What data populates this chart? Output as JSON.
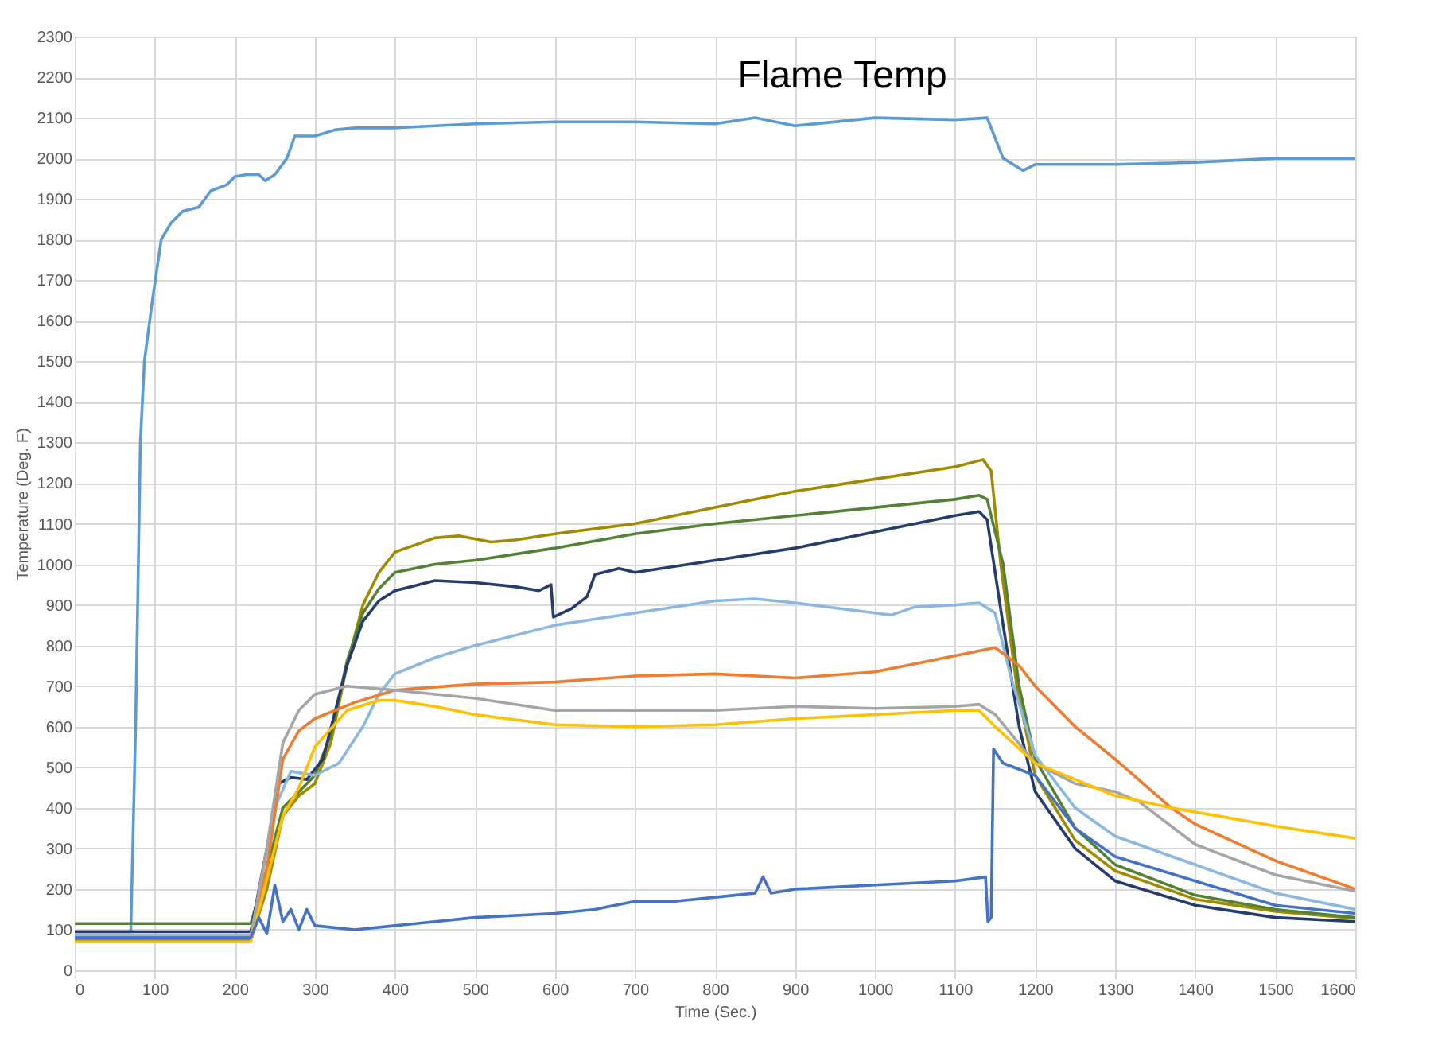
{
  "chart_data": {
    "type": "line",
    "title": "Flame Temp",
    "xlabel": "Time (Sec.)",
    "ylabel": "Temperature (Deg. F)",
    "xlim": [
      0,
      1600
    ],
    "xticks": [
      0,
      100,
      200,
      300,
      400,
      500,
      600,
      700,
      800,
      900,
      1000,
      1100,
      1200,
      1300,
      1400,
      1500,
      1600
    ],
    "ylim": [
      0,
      2300
    ],
    "yticks": [
      0,
      100,
      200,
      300,
      400,
      500,
      600,
      700,
      800,
      900,
      1000,
      1100,
      1200,
      1300,
      1400,
      1500,
      1600,
      1700,
      1800,
      1900,
      2000,
      2100,
      2200,
      2300
    ],
    "grid": true,
    "legend": false,
    "marker": "none",
    "line_style": "solid",
    "series": [
      {
        "color": "#5b9bd5",
        "x": [
          0,
          70,
          76,
          82,
          87,
          97,
          108,
          120,
          135,
          155,
          170,
          190,
          200,
          215,
          230,
          238,
          250,
          265,
          275,
          300,
          325,
          350,
          400,
          500,
          600,
          700,
          800,
          850,
          900,
          1000,
          1100,
          1140,
          1150,
          1160,
          1185,
          1200,
          1300,
          1400,
          1500,
          1600
        ],
        "values": [
          95,
          95,
          600,
          1300,
          1500,
          1650,
          1800,
          1840,
          1870,
          1880,
          1920,
          1935,
          1955,
          1960,
          1960,
          1945,
          1960,
          2000,
          2055,
          2055,
          2070,
          2075,
          2075,
          2085,
          2090,
          2090,
          2085,
          2100,
          2080,
          2100,
          2095,
          2100,
          2050,
          2000,
          1970,
          1985,
          1985,
          1990,
          2000,
          2000
        ]
      },
      {
        "color": "#a08b00",
        "x": [
          0,
          220,
          240,
          260,
          280,
          300,
          320,
          340,
          360,
          380,
          400,
          450,
          480,
          520,
          550,
          600,
          700,
          800,
          900,
          1000,
          1100,
          1135,
          1145,
          1157,
          1177,
          1200,
          1250,
          1300,
          1400,
          1500,
          1600
        ],
        "values": [
          75,
          75,
          200,
          380,
          430,
          460,
          560,
          750,
          900,
          980,
          1030,
          1065,
          1070,
          1055,
          1060,
          1075,
          1100,
          1140,
          1180,
          1210,
          1240,
          1258,
          1230,
          1000,
          700,
          480,
          320,
          245,
          175,
          145,
          128
        ]
      },
      {
        "color": "#548235",
        "x": [
          0,
          220,
          240,
          260,
          280,
          300,
          320,
          340,
          360,
          380,
          400,
          450,
          500,
          600,
          700,
          800,
          900,
          1000,
          1100,
          1130,
          1140,
          1160,
          1180,
          1200,
          1250,
          1300,
          1400,
          1500,
          1600
        ],
        "values": [
          115,
          115,
          250,
          400,
          440,
          480,
          580,
          760,
          880,
          940,
          980,
          1000,
          1010,
          1040,
          1075,
          1100,
          1120,
          1140,
          1160,
          1170,
          1160,
          1000,
          700,
          520,
          350,
          260,
          185,
          150,
          130
        ]
      },
      {
        "color": "#263c6e",
        "x": [
          0,
          220,
          240,
          255,
          270,
          290,
          310,
          340,
          360,
          380,
          400,
          450,
          500,
          550,
          580,
          595,
          598,
          620,
          640,
          650,
          680,
          700,
          800,
          900,
          1000,
          1100,
          1130,
          1140,
          1160,
          1180,
          1200,
          1250,
          1300,
          1400,
          1500,
          1600
        ],
        "values": [
          95,
          95,
          300,
          460,
          475,
          470,
          520,
          750,
          860,
          910,
          935,
          960,
          955,
          945,
          935,
          950,
          870,
          890,
          920,
          975,
          990,
          980,
          1010,
          1040,
          1080,
          1120,
          1130,
          1110,
          850,
          600,
          440,
          300,
          220,
          160,
          130,
          120
        ]
      },
      {
        "color": "#8ab8e0",
        "x": [
          0,
          220,
          250,
          270,
          300,
          330,
          360,
          380,
          400,
          450,
          500,
          600,
          700,
          800,
          850,
          900,
          1000,
          1020,
          1050,
          1100,
          1130,
          1150,
          1170,
          1200,
          1250,
          1300,
          1400,
          1500,
          1600
        ],
        "values": [
          85,
          85,
          400,
          490,
          480,
          510,
          600,
          680,
          730,
          770,
          800,
          850,
          880,
          910,
          915,
          905,
          880,
          875,
          895,
          900,
          905,
          880,
          720,
          530,
          400,
          330,
          260,
          190,
          150
        ]
      },
      {
        "color": "#ed7d31",
        "x": [
          0,
          220,
          240,
          260,
          280,
          300,
          350,
          400,
          500,
          600,
          700,
          800,
          900,
          1000,
          1100,
          1150,
          1180,
          1200,
          1250,
          1300,
          1370,
          1400,
          1500,
          1600
        ],
        "values": [
          80,
          80,
          250,
          520,
          590,
          620,
          660,
          690,
          705,
          710,
          725,
          730,
          720,
          735,
          775,
          795,
          750,
          700,
          600,
          520,
          400,
          360,
          270,
          200
        ]
      },
      {
        "color": "#a5a5a5",
        "x": [
          0,
          220,
          240,
          260,
          280,
          300,
          340,
          400,
          500,
          600,
          700,
          800,
          900,
          1000,
          1100,
          1130,
          1150,
          1200,
          1250,
          1300,
          1330,
          1400,
          1500,
          1600
        ],
        "values": [
          80,
          80,
          300,
          560,
          640,
          680,
          700,
          690,
          670,
          640,
          640,
          640,
          650,
          645,
          650,
          655,
          630,
          510,
          460,
          440,
          415,
          310,
          235,
          195
        ]
      },
      {
        "color": "#ffc000",
        "x": [
          0,
          220,
          260,
          280,
          300,
          340,
          380,
          400,
          450,
          500,
          600,
          700,
          800,
          900,
          1000,
          1100,
          1130,
          1150,
          1200,
          1250,
          1300,
          1370,
          1400,
          1500,
          1600
        ],
        "values": [
          70,
          70,
          380,
          450,
          550,
          640,
          665,
          665,
          650,
          630,
          605,
          600,
          605,
          620,
          630,
          640,
          640,
          600,
          510,
          470,
          430,
          400,
          390,
          355,
          325
        ]
      },
      {
        "color": "#4472c4",
        "x": [
          0,
          220,
          230,
          240,
          250,
          260,
          270,
          280,
          290,
          300,
          350,
          400,
          500,
          600,
          650,
          700,
          750,
          800,
          850,
          860,
          870,
          900,
          1000,
          1100,
          1138,
          1141,
          1145,
          1148,
          1160,
          1200,
          1250,
          1300,
          1400,
          1500,
          1600
        ],
        "values": [
          80,
          80,
          130,
          90,
          210,
          120,
          150,
          100,
          150,
          110,
          100,
          110,
          130,
          140,
          150,
          170,
          170,
          180,
          190,
          230,
          190,
          200,
          210,
          220,
          230,
          120,
          130,
          545,
          510,
          480,
          350,
          280,
          220,
          160,
          140
        ]
      }
    ]
  }
}
